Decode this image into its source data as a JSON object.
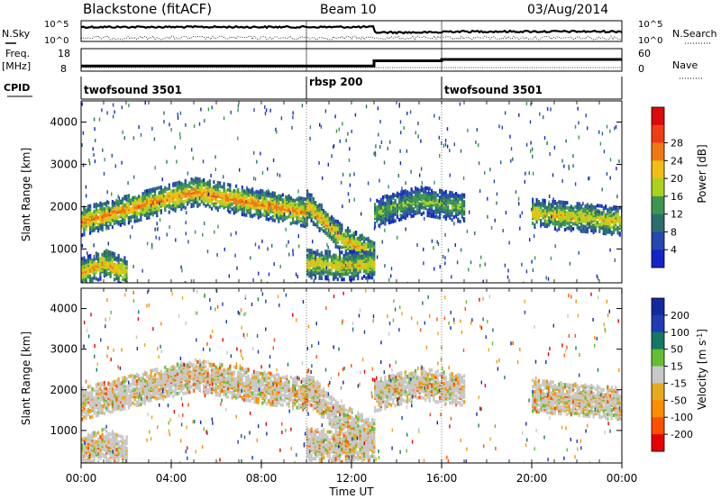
{
  "header": {
    "station": "Blackstone (fitACF)",
    "beam": "Beam 10",
    "date": "03/Aug/2014"
  },
  "sky_panel": {
    "left_label": "N.Sky",
    "right_label": "N.Search",
    "ticks_left": [
      "10^5",
      "10^0"
    ],
    "ticks_right": [
      "10^5",
      "10^0"
    ]
  },
  "freq_panel": {
    "left_label_1": "Freq.",
    "left_label_2": "[MHz]",
    "right_label": "Nave",
    "ticks_left": [
      "18",
      "8"
    ],
    "ticks_right": [
      "60",
      "0"
    ],
    "freq_steps": [
      {
        "t": 0,
        "v": 10.3
      },
      {
        "t": 13,
        "v": 12.6
      },
      {
        "t": 16,
        "v": 13.2
      },
      {
        "t": 24,
        "v": 13.2
      }
    ]
  },
  "cpid_panel": {
    "label": "CPID",
    "segments": [
      {
        "start": 0,
        "end": 10,
        "label": "twofsound 3501"
      },
      {
        "start": 10,
        "end": 16,
        "label": "rbsp 200"
      },
      {
        "start": 16,
        "end": 24,
        "label": "twofsound 3501"
      }
    ]
  },
  "x_axis": {
    "label": "Time UT",
    "ticks": [
      "00:00",
      "04:00",
      "08:00",
      "12:00",
      "16:00",
      "20:00",
      "00:00"
    ]
  },
  "power_panel": {
    "ylabel": "Slant Range [km]",
    "yticks": [
      "1000",
      "2000",
      "3000",
      "4000"
    ],
    "colorbar": {
      "label": "Power [dB]",
      "ticks": [
        "4",
        "8",
        "12",
        "16",
        "20",
        "24",
        "28"
      ],
      "colors": [
        "#1424c8",
        "#2448b0",
        "#2c6e6e",
        "#3c9650",
        "#aad21e",
        "#f0be14",
        "#f07814",
        "#f03c14",
        "#dc0a0a"
      ]
    }
  },
  "velocity_panel": {
    "ylabel": "Slant Range [km]",
    "yticks": [
      "1000",
      "2000",
      "3000",
      "4000"
    ],
    "colorbar": {
      "label": "Velocity [m s^-1]",
      "ticks": [
        "-200",
        "-100",
        "-50",
        "-15",
        "15",
        "50",
        "100",
        "200"
      ],
      "colors": [
        "#e60000",
        "#ff5000",
        "#ff8c00",
        "#e6aa1e",
        "#c8c8c8",
        "#64be32",
        "#147864",
        "#1e3cb4",
        "#1428a0"
      ]
    }
  },
  "chart_data": {
    "type": "heatmap",
    "x_range_hours": [
      0,
      24
    ],
    "y_range_km": [
      200,
      4500
    ],
    "echo_bands": [
      {
        "t_start": 0,
        "t_end": 10,
        "range_start_km": 1700,
        "range_peak_km": 2400,
        "range_end_km": 1900,
        "power_db": 24
      },
      {
        "t_start": 0,
        "t_end": 2,
        "range_start_km": 500,
        "range_peak_km": 700,
        "range_end_km": 500,
        "power_db": 22
      },
      {
        "t_start": 10,
        "t_end": 13,
        "range_start_km": 2100,
        "range_peak_km": 1300,
        "range_end_km": 900,
        "power_db": 22
      },
      {
        "t_start": 10,
        "t_end": 13,
        "range_start_km": 700,
        "range_peak_km": 650,
        "range_end_km": 700,
        "power_db": 20
      },
      {
        "t_start": 13,
        "t_end": 17,
        "range_start_km": 1900,
        "range_peak_km": 2200,
        "range_end_km": 2000,
        "power_db": 14
      },
      {
        "t_start": 20,
        "t_end": 24,
        "range_start_km": 1900,
        "range_peak_km": 1800,
        "range_end_km": 1700,
        "power_db": 20
      }
    ]
  }
}
